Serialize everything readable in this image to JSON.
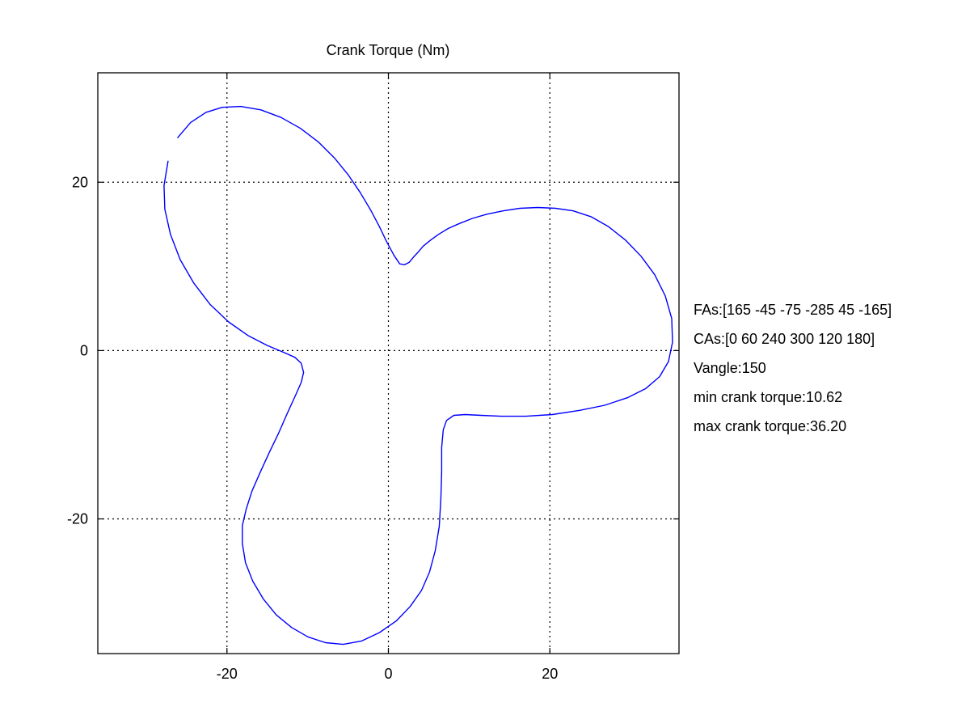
{
  "chart_data": {
    "type": "line",
    "title": "Crank Torque (Nm)",
    "xlabel": "",
    "ylabel": "",
    "xlim": [
      -36,
      36
    ],
    "ylim": [
      -36,
      33
    ],
    "xticks": [
      -20,
      0,
      20
    ],
    "yticks": [
      -20,
      0,
      20
    ],
    "xtick_labels": [
      "-20",
      "0",
      "20"
    ],
    "ytick_labels": [
      "-20",
      "0",
      "20"
    ],
    "grid": true,
    "aspect": "equal",
    "series": [
      {
        "color": "#0000ff",
        "x": [
          -26.1,
          -24.5,
          -22.6,
          -20.6,
          -18.3,
          -15.8,
          -13.3,
          -10.9,
          -8.7,
          -6.7,
          -5,
          -3.5,
          -2.2,
          -1.1,
          -0.2,
          0.7,
          1.4,
          2,
          2.6,
          3.1,
          3.7,
          4.3,
          5.2,
          6.2,
          7.4,
          8.8,
          10.4,
          12.2,
          14.2,
          16.3,
          18.5,
          20.7,
          22.9,
          25.1,
          27.3,
          29.4,
          31.3,
          33,
          34.3,
          35.1,
          35.2,
          34.7,
          33.6,
          31.9,
          29.6,
          26.8,
          23.7,
          20.3,
          17,
          14,
          11.5,
          9.5,
          8.1,
          7.2,
          6.8,
          6.6,
          6.6,
          6.5,
          6.3,
          5.8,
          5.1,
          4.1,
          2.7,
          1,
          -1.1,
          -3.3,
          -5.6,
          -7.8,
          -10,
          -12,
          -13.9,
          -15.5,
          -16.8,
          -17.7,
          -18.1,
          -18.1,
          -17.6,
          -16.9,
          -15.9,
          -14.8,
          -13.6,
          -12.5,
          -11.5,
          -10.8,
          -10.5,
          -10.8,
          -11.6,
          -13,
          -15,
          -17.4,
          -19.8,
          -22.1,
          -24.1,
          -25.8,
          -27,
          -27.7,
          -27.8,
          -27.3
        ],
        "y": [
          25.3,
          27.1,
          28.3,
          28.9,
          29,
          28.6,
          27.7,
          26.4,
          24.8,
          22.9,
          20.9,
          18.8,
          16.7,
          14.7,
          12.9,
          11.3,
          10.3,
          10.2,
          10.5,
          11.1,
          11.7,
          12.4,
          13.1,
          13.8,
          14.5,
          15.1,
          15.7,
          16.2,
          16.6,
          16.9,
          17,
          16.9,
          16.6,
          15.9,
          14.7,
          13.1,
          11.2,
          9,
          6.5,
          3.8,
          1,
          -1.3,
          -3.1,
          -4.5,
          -5.6,
          -6.5,
          -7.1,
          -7.6,
          -7.8,
          -7.8,
          -7.7,
          -7.6,
          -7.7,
          -8.3,
          -9.4,
          -11.5,
          -14.4,
          -17.6,
          -20.9,
          -23.8,
          -26.3,
          -28.5,
          -30.4,
          -32.1,
          -33.5,
          -34.5,
          -34.9,
          -34.7,
          -34,
          -32.9,
          -31.4,
          -29.5,
          -27.4,
          -25.2,
          -22.9,
          -20.8,
          -18.8,
          -16.7,
          -14.5,
          -12.2,
          -9.8,
          -7.4,
          -5.3,
          -3.8,
          -2.6,
          -1.5,
          -0.8,
          -0.2,
          0.6,
          1.8,
          3.4,
          5.5,
          8,
          10.8,
          13.8,
          16.8,
          19.6,
          22.5
        ]
      }
    ]
  },
  "annotations": {
    "fas": "FAs:[165 -45 -75 -285 45 -165]",
    "cas": "CAs:[0 60 240 300 120 180]",
    "vangle": "Vangle:150",
    "min_torque": "min crank torque:10.62",
    "max_torque": "max crank torque:36.20"
  }
}
